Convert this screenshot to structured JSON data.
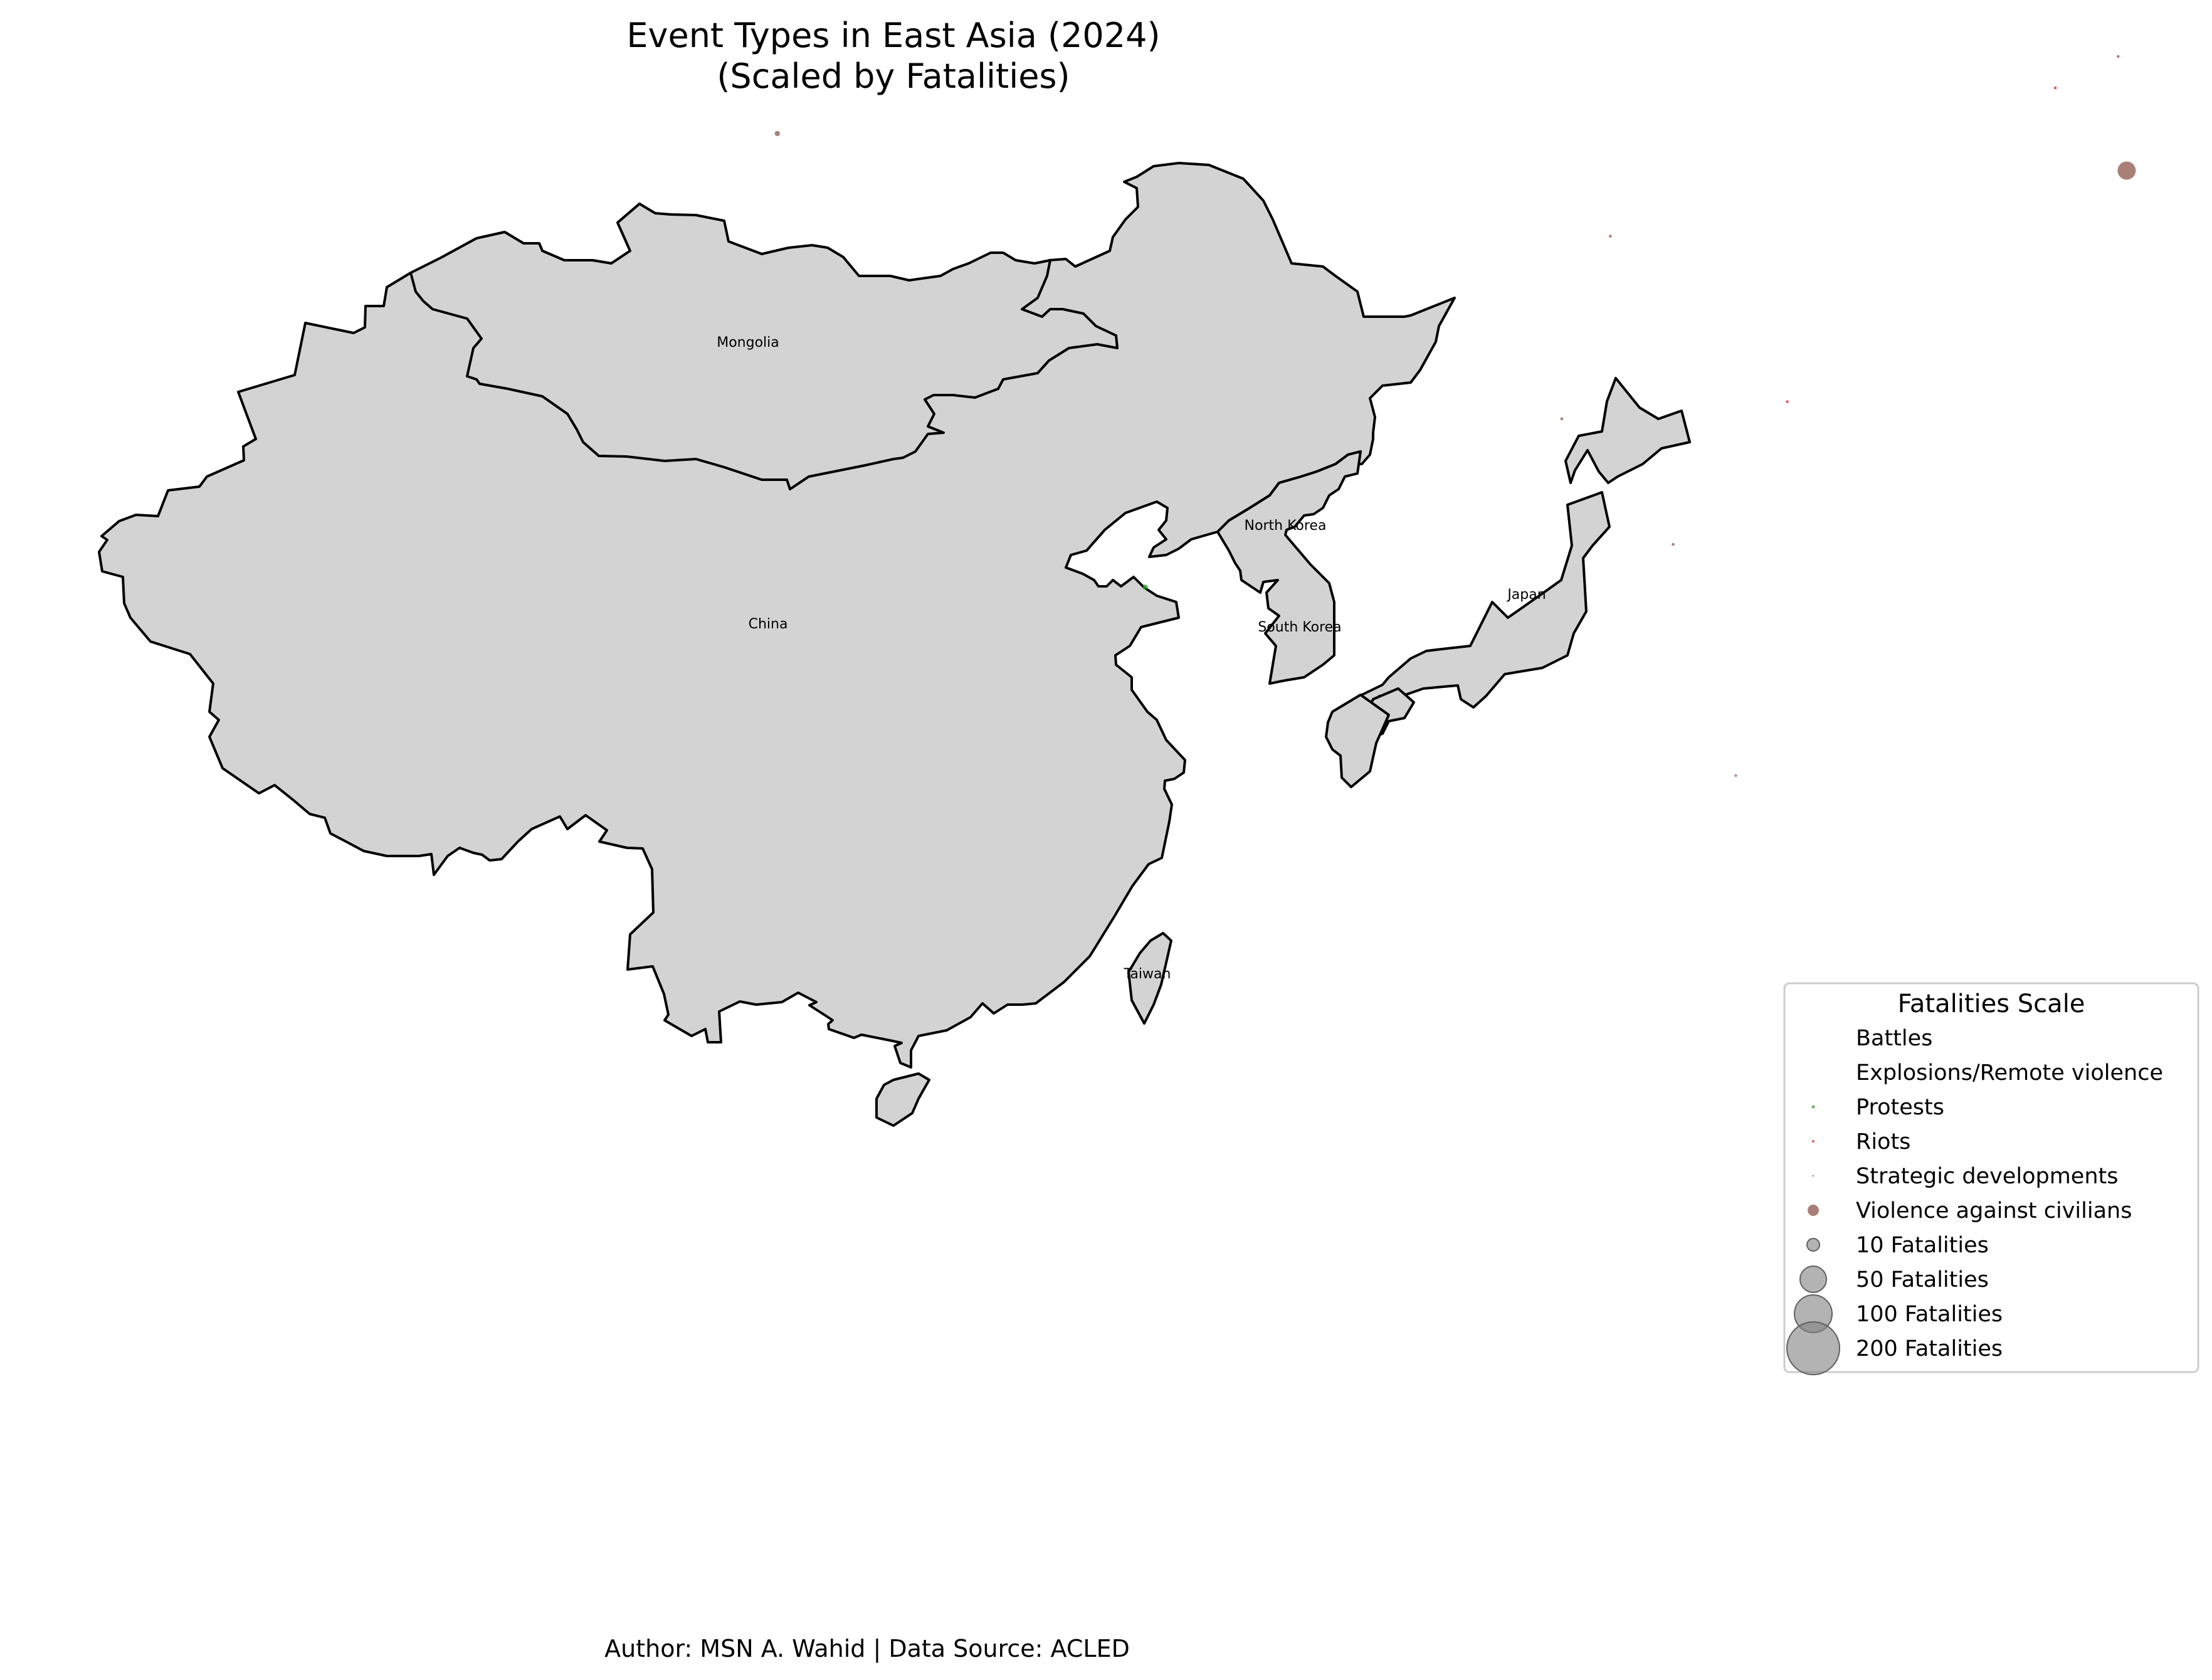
{
  "title_line1": "Event Types in East Asia (2024)",
  "title_line2": "(Scaled by Fatalities)",
  "footer": "Author: MSN A. Wahid | Data Source: ACLED",
  "country_labels": {
    "mongolia": "Mongolia",
    "china": "China",
    "north_korea": "North Korea",
    "south_korea": "South Korea",
    "japan": "Japan",
    "taiwan": "Taiwan"
  },
  "legend": {
    "title": "Fatalities Scale",
    "event_types": [
      {
        "label": "Battles",
        "color": "#1f77b4"
      },
      {
        "label": "Explosions/Remote violence",
        "color": "#ff7f0e"
      },
      {
        "label": "Protests",
        "color": "#2ca02c"
      },
      {
        "label": "Riots",
        "color": "#d62728"
      },
      {
        "label": "Strategic developments",
        "color": "#9467bd"
      },
      {
        "label": "Violence against civilians",
        "color": "#8c564b"
      }
    ],
    "size_scale": [
      {
        "label": "10 Fatalities",
        "fatalities": 10
      },
      {
        "label": "50 Fatalities",
        "fatalities": 50
      },
      {
        "label": "100 Fatalities",
        "fatalities": 100
      },
      {
        "label": "200 Fatalities",
        "fatalities": 200
      }
    ]
  },
  "chart_data": {
    "type": "scatter",
    "events": [
      {
        "lon": 78.5,
        "lat": 40.2,
        "type": "Violence against civilians",
        "fatalities": 1
      },
      {
        "lon": 123.3,
        "lat": 41.8,
        "type": "Riots",
        "fatalities": 0
      },
      {
        "lon": 125.5,
        "lat": 42.9,
        "type": "Violence against civilians",
        "fatalities": 0
      },
      {
        "lon": 125.8,
        "lat": 38.9,
        "type": "Violence against civilians",
        "fatalities": 12
      },
      {
        "lon": 107.7,
        "lat": 36.6,
        "type": "Violence against civilians",
        "fatalities": 0
      },
      {
        "lon": 106.0,
        "lat": 30.2,
        "type": "Violence against civilians",
        "fatalities": 0
      },
      {
        "lon": 113.9,
        "lat": 30.8,
        "type": "Riots",
        "fatalities": 0
      },
      {
        "lon": 109.9,
        "lat": 25.8,
        "type": "Violence against civilians",
        "fatalities": 0
      },
      {
        "lon": 91.4,
        "lat": 24.3,
        "type": "Protests",
        "fatalities": 1
      },
      {
        "lon": 112.1,
        "lat": 17.7,
        "type": "Strategic developments",
        "fatalities": 0
      }
    ]
  }
}
